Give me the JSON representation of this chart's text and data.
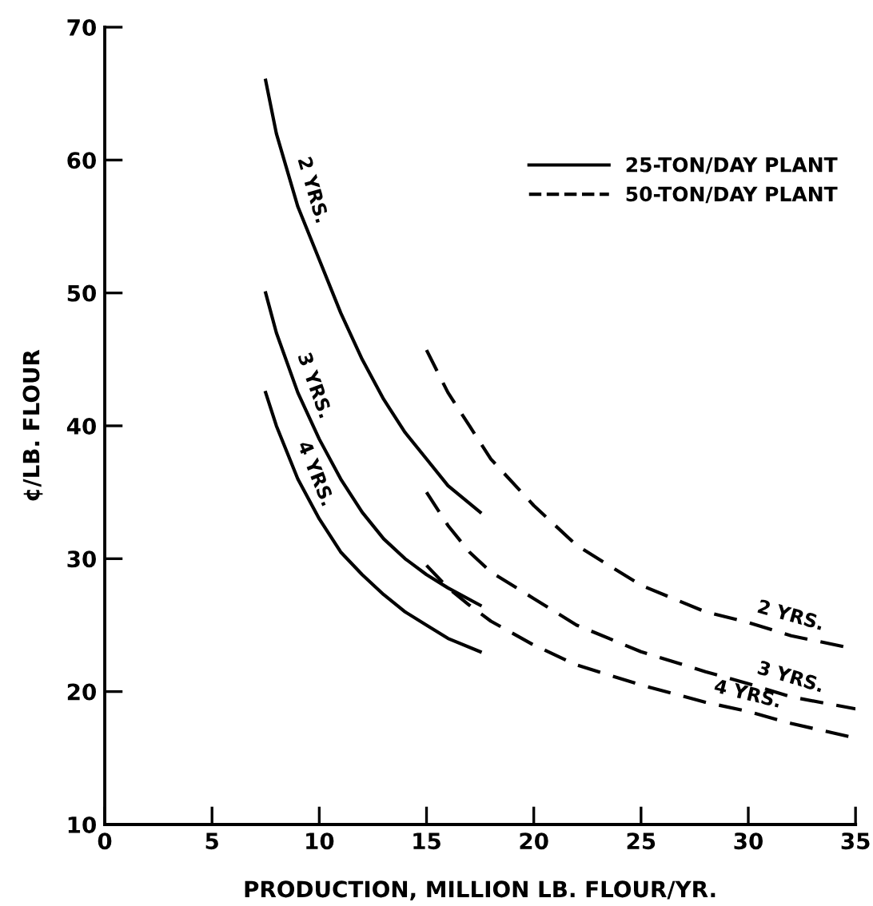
{
  "chart_data": {
    "type": "line",
    "xlabel": "PRODUCTION, MILLION LB. FLOUR/YR.",
    "ylabel": "¢/LB. FLOUR",
    "xlim": [
      0,
      35
    ],
    "ylim": [
      10,
      70
    ],
    "xticks": [
      0,
      5,
      10,
      15,
      20,
      25,
      30,
      35
    ],
    "yticks": [
      10,
      20,
      30,
      40,
      50,
      60,
      70
    ],
    "grid": false,
    "legend": "top right",
    "marker": "none",
    "series": [
      {
        "name": "25-TON/DAY PLANT",
        "color": "#000000",
        "line_style": "solid",
        "x": [
          7.5,
          8,
          9,
          10,
          11,
          12,
          13,
          14,
          15,
          16,
          17.5
        ],
        "values": [
          66,
          62,
          56.5,
          52.5,
          48.5,
          45,
          42,
          39.5,
          37.5,
          35.5,
          33.5
        ]
      },
      {
        "color": "#000000",
        "line_style": "solid",
        "x": [
          7.5,
          8,
          9,
          10,
          11,
          12,
          13,
          14,
          15,
          16,
          17.5
        ],
        "values": [
          50,
          47,
          42.5,
          39,
          36,
          33.5,
          31.5,
          30,
          28.8,
          27.8,
          26.5
        ]
      },
      {
        "color": "#000000",
        "line_style": "solid",
        "x": [
          7.5,
          8,
          9,
          10,
          11,
          12,
          13,
          14,
          15,
          16,
          17.5
        ],
        "values": [
          42.5,
          40,
          36,
          33,
          30.5,
          28.8,
          27.3,
          26,
          25,
          24,
          23
        ]
      },
      {
        "name": "50-TON/DAY PLANT",
        "color": "#000000",
        "line_style": "dashed",
        "x": [
          15,
          16,
          17,
          18,
          20,
          22,
          25,
          28,
          30,
          32,
          35
        ],
        "values": [
          45.7,
          42.5,
          40,
          37.5,
          34,
          31,
          28,
          26,
          25.2,
          24.2,
          23.2
        ]
      },
      {
        "color": "#000000",
        "line_style": "dashed",
        "x": [
          15,
          16,
          17,
          18,
          20,
          22,
          25,
          28,
          30,
          32,
          35
        ],
        "values": [
          35,
          32.5,
          30.5,
          29,
          27,
          25,
          23,
          21.5,
          20.6,
          19.6,
          18.7
        ]
      },
      {
        "color": "#000000",
        "line_style": "dashed",
        "x": [
          15,
          16,
          17,
          18,
          20,
          22,
          25,
          28,
          30,
          32,
          35
        ],
        "values": [
          29.5,
          27.8,
          26.5,
          25.3,
          23.5,
          22,
          20.5,
          19.2,
          18.5,
          17.6,
          16.5
        ]
      }
    ],
    "annotations": [
      {
        "text": "2 YRS.",
        "x": 8.5,
        "y": 59.5
      },
      {
        "text": "3 YRS.",
        "x": 8.5,
        "y": 44.7
      },
      {
        "text": "4 YRS.",
        "x": 8.5,
        "y": 38
      },
      {
        "text": "2 YRS.",
        "x": 30,
        "y": 25.2
      },
      {
        "text": "3 YRS.",
        "x": 30,
        "y": 20.6
      },
      {
        "text": "4 YRS.",
        "x": 28,
        "y": 19.2
      }
    ]
  }
}
